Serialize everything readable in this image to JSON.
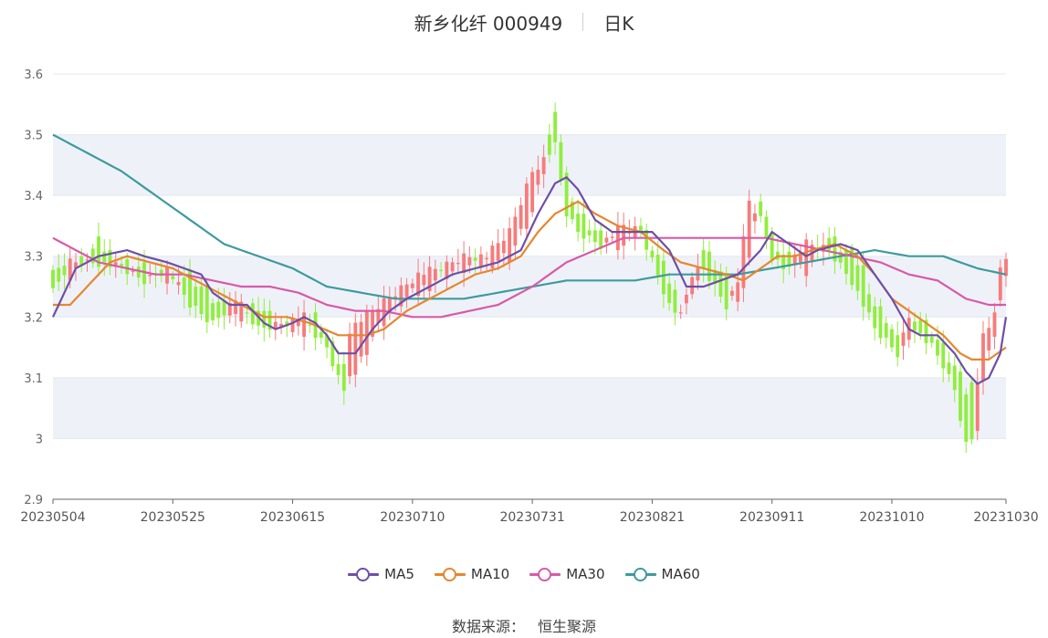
{
  "header": {
    "title": "新乡化纤 000949",
    "period": "日K"
  },
  "footer": {
    "source_label": "数据来源：",
    "source_value": "恒生聚源"
  },
  "colors": {
    "up": "#f77b7b",
    "down": "#90ee3e",
    "ma5": "#6f4ea8",
    "ma10": "#e7862f",
    "ma30": "#d85aa8",
    "ma60": "#3e9a9e"
  },
  "chart_data": {
    "type": "candlestick",
    "ylim": [
      2.9,
      3.6
    ],
    "yticks": [
      "2.9",
      "3",
      "3.1",
      "3.2",
      "3.3",
      "3.4",
      "3.5",
      "3.6"
    ],
    "xticks": [
      "20230504",
      "20230525",
      "20230615",
      "20230710",
      "20230731",
      "20230821",
      "20230911",
      "20231010",
      "20231030"
    ],
    "xtick_index": [
      0,
      21,
      42,
      63,
      84,
      105,
      126,
      147,
      167
    ],
    "num_bars": 168,
    "bands": [
      [
        3.0,
        3.1
      ],
      [
        3.2,
        3.3
      ],
      [
        3.4,
        3.5
      ]
    ],
    "legend": [
      "MA5",
      "MA10",
      "MA30",
      "MA60"
    ],
    "candles_anchor": [
      [
        0,
        3.29,
        3.24
      ],
      [
        3,
        3.27,
        3.29
      ],
      [
        8,
        3.32,
        3.29
      ],
      [
        12,
        3.29,
        3.28
      ],
      [
        16,
        3.28,
        3.26
      ],
      [
        20,
        3.26,
        3.28
      ],
      [
        24,
        3.27,
        3.22
      ],
      [
        28,
        3.23,
        3.19
      ],
      [
        32,
        3.2,
        3.23
      ],
      [
        36,
        3.22,
        3.18
      ],
      [
        40,
        3.18,
        3.19
      ],
      [
        44,
        3.18,
        3.2
      ],
      [
        46,
        3.2,
        3.17
      ],
      [
        48,
        3.17,
        3.15
      ],
      [
        50,
        3.13,
        3.1
      ],
      [
        51,
        3.12,
        3.08
      ],
      [
        52,
        3.09,
        3.18
      ],
      [
        56,
        3.17,
        3.21
      ],
      [
        60,
        3.22,
        3.24
      ],
      [
        64,
        3.24,
        3.27
      ],
      [
        68,
        3.27,
        3.28
      ],
      [
        72,
        3.28,
        3.3
      ],
      [
        76,
        3.29,
        3.3
      ],
      [
        80,
        3.3,
        3.34
      ],
      [
        84,
        3.37,
        3.44
      ],
      [
        86,
        3.44,
        3.46
      ],
      [
        88,
        3.55,
        3.48
      ],
      [
        90,
        3.43,
        3.37
      ],
      [
        92,
        3.37,
        3.34
      ],
      [
        96,
        3.33,
        3.32
      ],
      [
        100,
        3.32,
        3.35
      ],
      [
        103,
        3.35,
        3.34
      ],
      [
        106,
        3.3,
        3.27
      ],
      [
        108,
        3.26,
        3.22
      ],
      [
        110,
        3.22,
        3.2
      ],
      [
        112,
        3.23,
        3.27
      ],
      [
        114,
        3.31,
        3.28
      ],
      [
        118,
        3.26,
        3.22
      ],
      [
        120,
        3.22,
        3.26
      ],
      [
        122,
        3.3,
        3.39
      ],
      [
        124,
        3.4,
        3.36
      ],
      [
        126,
        3.33,
        3.3
      ],
      [
        128,
        3.3,
        3.28
      ],
      [
        132,
        3.28,
        3.32
      ],
      [
        136,
        3.33,
        3.31
      ],
      [
        140,
        3.3,
        3.26
      ],
      [
        142,
        3.28,
        3.22
      ],
      [
        144,
        3.22,
        3.18
      ],
      [
        146,
        3.2,
        3.16
      ],
      [
        148,
        3.16,
        3.14
      ],
      [
        150,
        3.16,
        3.2
      ],
      [
        152,
        3.2,
        3.17
      ],
      [
        154,
        3.18,
        3.15
      ],
      [
        156,
        3.15,
        3.12
      ],
      [
        158,
        3.12,
        3.08
      ],
      [
        160,
        3.08,
        2.99
      ],
      [
        161,
        3.09,
        3.0
      ],
      [
        162,
        3.0,
        3.1
      ],
      [
        163,
        3.1,
        3.17
      ],
      [
        165,
        3.18,
        3.2
      ],
      [
        166,
        3.23,
        3.28
      ],
      [
        167,
        3.26,
        3.3
      ]
    ],
    "ma5_points": [
      [
        0,
        3.2
      ],
      [
        4,
        3.28
      ],
      [
        8,
        3.3
      ],
      [
        13,
        3.31
      ],
      [
        16,
        3.3
      ],
      [
        20,
        3.29
      ],
      [
        23,
        3.28
      ],
      [
        26,
        3.27
      ],
      [
        28,
        3.24
      ],
      [
        31,
        3.22
      ],
      [
        34,
        3.22
      ],
      [
        37,
        3.19
      ],
      [
        39,
        3.18
      ],
      [
        42,
        3.19
      ],
      [
        44,
        3.2
      ],
      [
        46,
        3.19
      ],
      [
        48,
        3.17
      ],
      [
        50,
        3.14
      ],
      [
        53,
        3.14
      ],
      [
        56,
        3.18
      ],
      [
        59,
        3.21
      ],
      [
        62,
        3.23
      ],
      [
        66,
        3.25
      ],
      [
        70,
        3.27
      ],
      [
        74,
        3.28
      ],
      [
        78,
        3.29
      ],
      [
        82,
        3.31
      ],
      [
        85,
        3.37
      ],
      [
        88,
        3.42
      ],
      [
        90,
        3.43
      ],
      [
        92,
        3.41
      ],
      [
        95,
        3.36
      ],
      [
        98,
        3.34
      ],
      [
        102,
        3.34
      ],
      [
        105,
        3.34
      ],
      [
        108,
        3.31
      ],
      [
        111,
        3.25
      ],
      [
        114,
        3.25
      ],
      [
        117,
        3.26
      ],
      [
        120,
        3.27
      ],
      [
        124,
        3.31
      ],
      [
        126,
        3.34
      ],
      [
        129,
        3.32
      ],
      [
        132,
        3.3
      ],
      [
        134,
        3.31
      ],
      [
        138,
        3.32
      ],
      [
        141,
        3.31
      ],
      [
        144,
        3.27
      ],
      [
        147,
        3.23
      ],
      [
        150,
        3.18
      ],
      [
        152,
        3.17
      ],
      [
        155,
        3.17
      ],
      [
        158,
        3.14
      ],
      [
        160,
        3.11
      ],
      [
        162,
        3.09
      ],
      [
        164,
        3.1
      ],
      [
        166,
        3.14
      ],
      [
        167,
        3.2
      ]
    ],
    "ma10_points": [
      [
        0,
        3.22
      ],
      [
        3,
        3.22
      ],
      [
        6,
        3.25
      ],
      [
        10,
        3.29
      ],
      [
        13,
        3.3
      ],
      [
        17,
        3.29
      ],
      [
        21,
        3.28
      ],
      [
        25,
        3.26
      ],
      [
        29,
        3.24
      ],
      [
        33,
        3.22
      ],
      [
        37,
        3.2
      ],
      [
        41,
        3.2
      ],
      [
        45,
        3.19
      ],
      [
        50,
        3.17
      ],
      [
        55,
        3.17
      ],
      [
        58,
        3.18
      ],
      [
        62,
        3.21
      ],
      [
        66,
        3.23
      ],
      [
        70,
        3.25
      ],
      [
        74,
        3.27
      ],
      [
        78,
        3.28
      ],
      [
        82,
        3.3
      ],
      [
        85,
        3.34
      ],
      [
        88,
        3.37
      ],
      [
        92,
        3.39
      ],
      [
        95,
        3.37
      ],
      [
        99,
        3.35
      ],
      [
        103,
        3.34
      ],
      [
        107,
        3.31
      ],
      [
        110,
        3.29
      ],
      [
        114,
        3.28
      ],
      [
        118,
        3.27
      ],
      [
        121,
        3.26
      ],
      [
        124,
        3.28
      ],
      [
        127,
        3.3
      ],
      [
        130,
        3.3
      ],
      [
        133,
        3.31
      ],
      [
        137,
        3.32
      ],
      [
        141,
        3.3
      ],
      [
        144,
        3.27
      ],
      [
        147,
        3.23
      ],
      [
        150,
        3.21
      ],
      [
        153,
        3.19
      ],
      [
        156,
        3.17
      ],
      [
        159,
        3.14
      ],
      [
        161,
        3.13
      ],
      [
        164,
        3.13
      ],
      [
        167,
        3.15
      ]
    ],
    "ma30_points": [
      [
        0,
        3.33
      ],
      [
        4,
        3.31
      ],
      [
        8,
        3.29
      ],
      [
        13,
        3.28
      ],
      [
        18,
        3.27
      ],
      [
        23,
        3.27
      ],
      [
        28,
        3.26
      ],
      [
        33,
        3.25
      ],
      [
        38,
        3.25
      ],
      [
        43,
        3.24
      ],
      [
        48,
        3.22
      ],
      [
        53,
        3.21
      ],
      [
        58,
        3.21
      ],
      [
        63,
        3.2
      ],
      [
        68,
        3.2
      ],
      [
        73,
        3.21
      ],
      [
        78,
        3.22
      ],
      [
        84,
        3.25
      ],
      [
        90,
        3.29
      ],
      [
        95,
        3.31
      ],
      [
        100,
        3.33
      ],
      [
        105,
        3.33
      ],
      [
        110,
        3.33
      ],
      [
        115,
        3.33
      ],
      [
        120,
        3.33
      ],
      [
        125,
        3.33
      ],
      [
        130,
        3.32
      ],
      [
        135,
        3.31
      ],
      [
        140,
        3.3
      ],
      [
        145,
        3.29
      ],
      [
        150,
        3.27
      ],
      [
        155,
        3.26
      ],
      [
        160,
        3.23
      ],
      [
        164,
        3.22
      ],
      [
        167,
        3.22
      ]
    ],
    "ma60_points": [
      [
        0,
        3.5
      ],
      [
        6,
        3.47
      ],
      [
        12,
        3.44
      ],
      [
        18,
        3.4
      ],
      [
        24,
        3.36
      ],
      [
        30,
        3.32
      ],
      [
        36,
        3.3
      ],
      [
        42,
        3.28
      ],
      [
        48,
        3.25
      ],
      [
        54,
        3.24
      ],
      [
        60,
        3.23
      ],
      [
        66,
        3.23
      ],
      [
        72,
        3.23
      ],
      [
        78,
        3.24
      ],
      [
        84,
        3.25
      ],
      [
        90,
        3.26
      ],
      [
        96,
        3.26
      ],
      [
        102,
        3.26
      ],
      [
        108,
        3.27
      ],
      [
        114,
        3.27
      ],
      [
        120,
        3.27
      ],
      [
        126,
        3.28
      ],
      [
        132,
        3.29
      ],
      [
        138,
        3.3
      ],
      [
        144,
        3.31
      ],
      [
        150,
        3.3
      ],
      [
        156,
        3.3
      ],
      [
        162,
        3.28
      ],
      [
        167,
        3.27
      ]
    ]
  }
}
